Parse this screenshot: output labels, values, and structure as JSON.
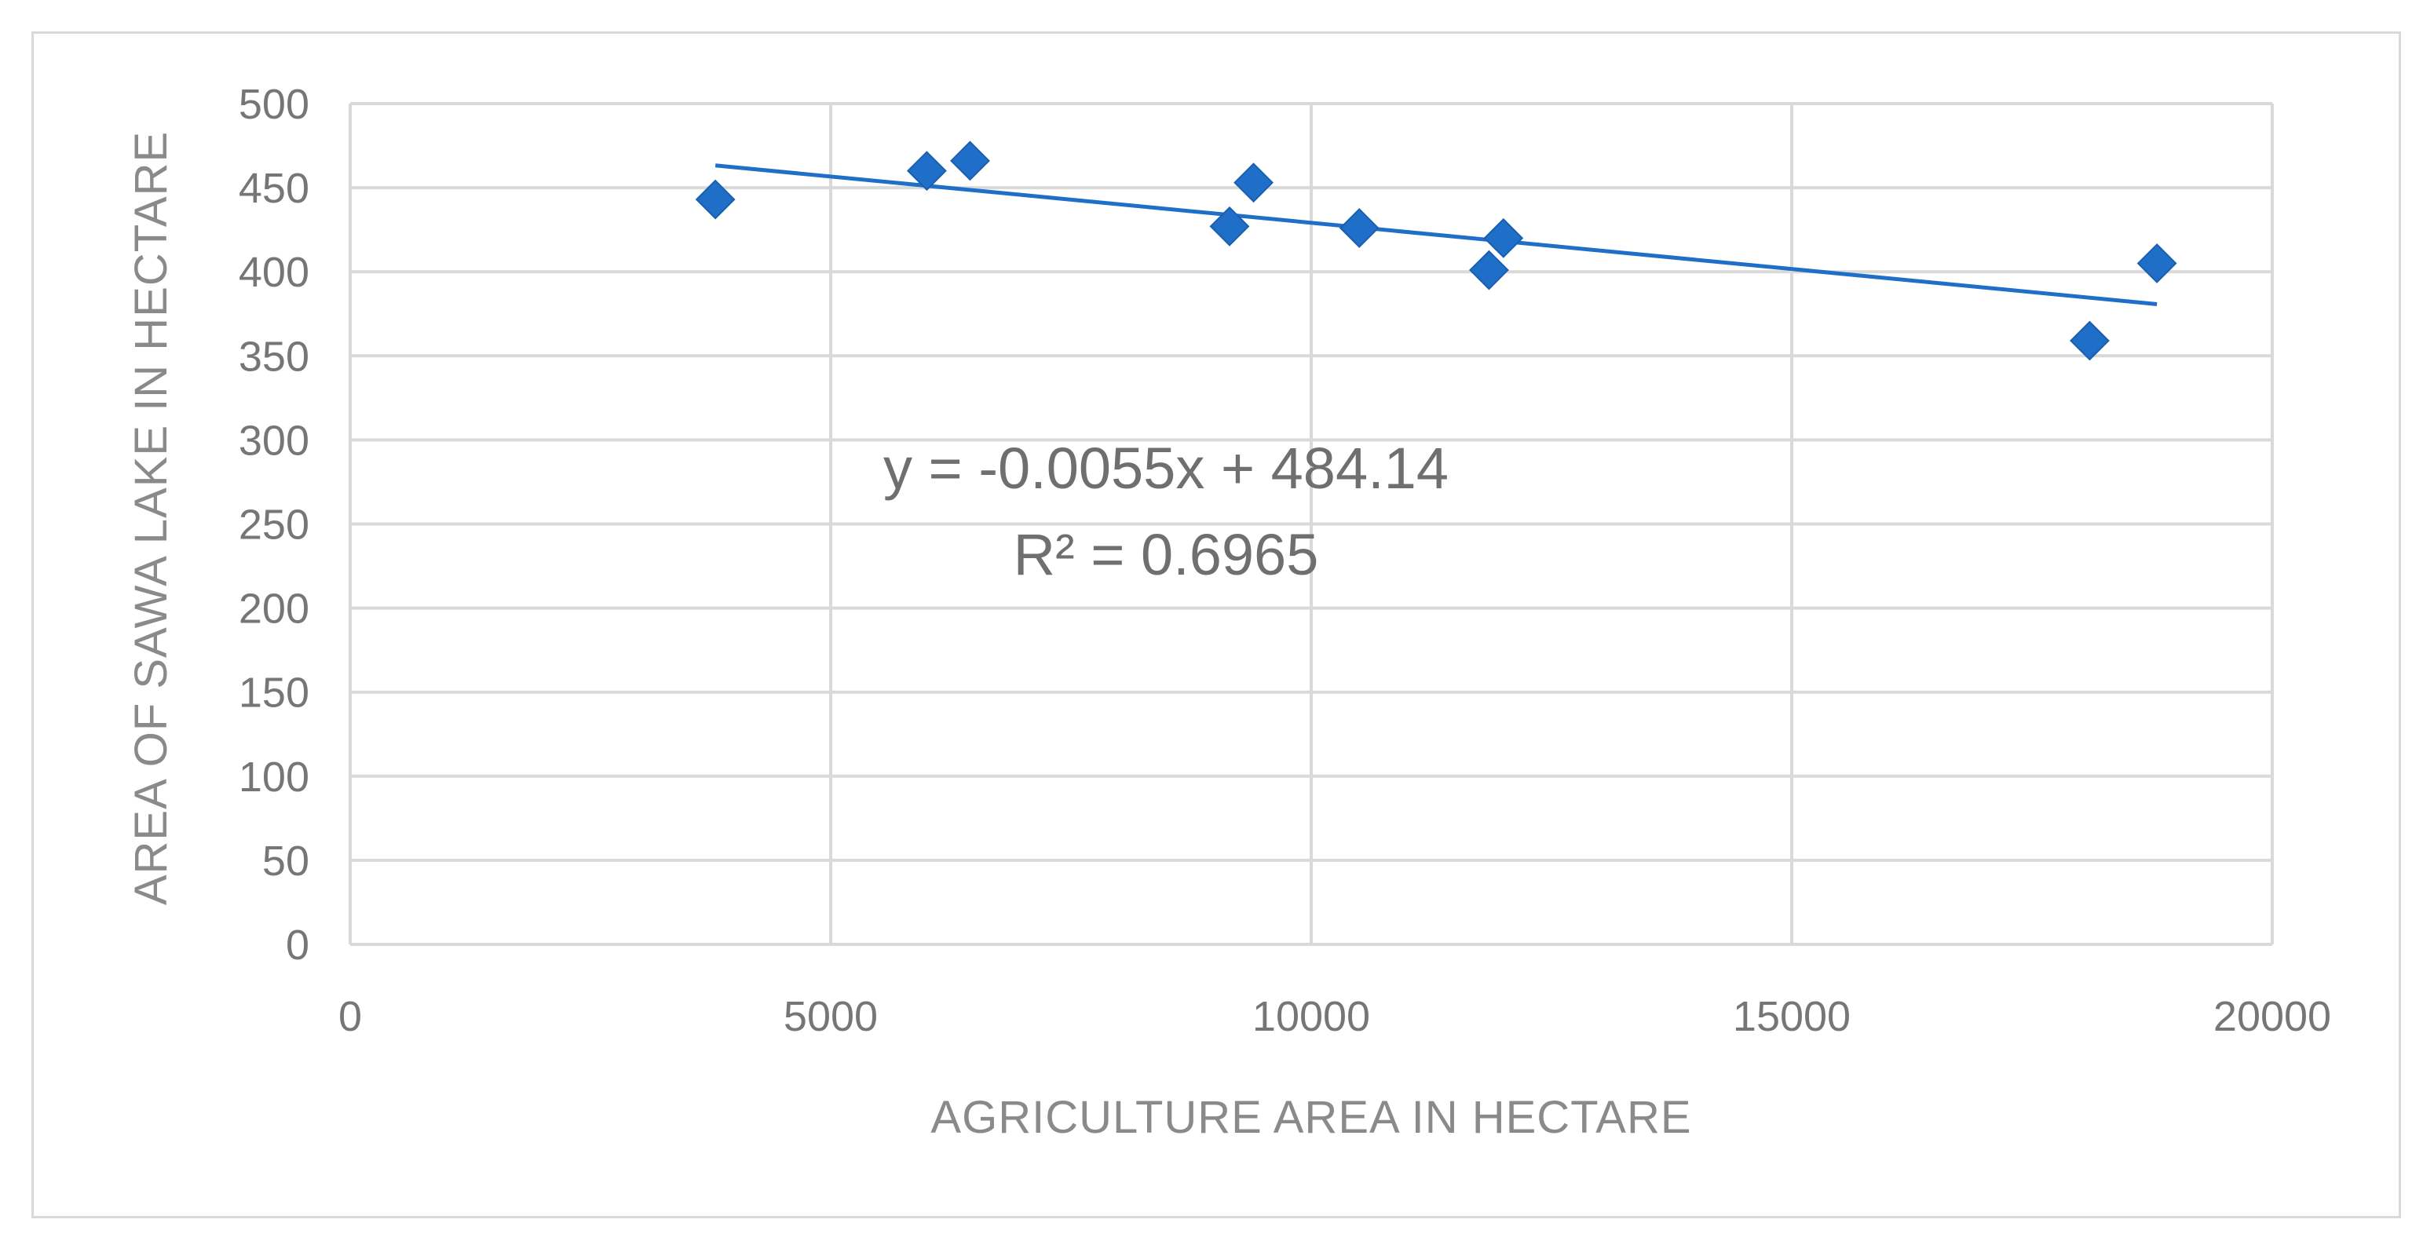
{
  "chart_data": {
    "type": "scatter",
    "xlabel": "AGRICULTURE AREA IN HECTARE",
    "ylabel": "AREA OF SAWA LAKE IN HECTARE",
    "xlim": [
      0,
      20000
    ],
    "ylim": [
      0,
      500
    ],
    "x_ticks": [
      0,
      5000,
      10000,
      15000,
      20000
    ],
    "y_ticks": [
      0,
      50,
      100,
      150,
      200,
      250,
      300,
      350,
      400,
      450,
      500
    ],
    "grid": true,
    "marker": "diamond",
    "color": "#1f6fc8",
    "points": [
      {
        "x": 3800,
        "y": 443
      },
      {
        "x": 6000,
        "y": 460
      },
      {
        "x": 6450,
        "y": 466
      },
      {
        "x": 9150,
        "y": 427
      },
      {
        "x": 9400,
        "y": 453
      },
      {
        "x": 10500,
        "y": 426
      },
      {
        "x": 11850,
        "y": 401
      },
      {
        "x": 12000,
        "y": 420
      },
      {
        "x": 18100,
        "y": 359
      },
      {
        "x": 18800,
        "y": 405
      }
    ],
    "trendline": {
      "slope": -0.0055,
      "intercept": 484.14,
      "x_range": [
        3800,
        18800
      ],
      "equation": "y = -0.0055x + 484.14",
      "r_squared": "R² = 0.6965"
    }
  }
}
